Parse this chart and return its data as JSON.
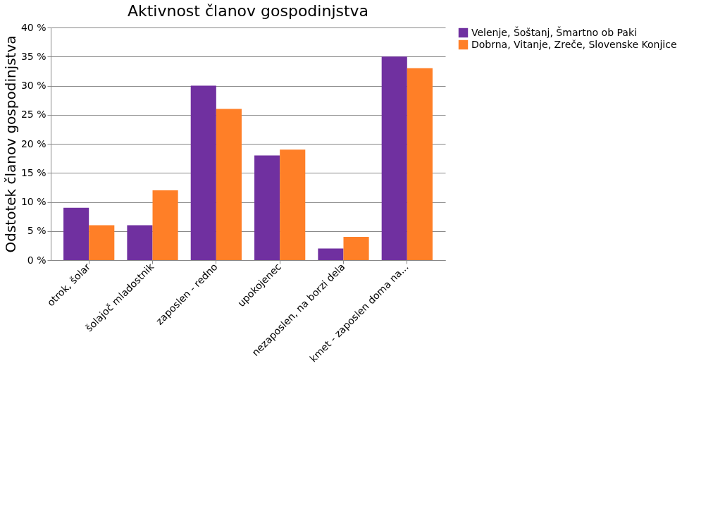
{
  "chart_data": {
    "type": "bar",
    "title": "Aktivnost članov gospodinjstva",
    "ylabel": "Odstotek članov gospodinjstva",
    "categories": [
      "otrok, šolar",
      "šolajoč mladostnik",
      "zaposlen - redno",
      "upokojenec",
      "nezaposlen, na borzi dela",
      "kmet - zaposlen doma na..."
    ],
    "series": [
      {
        "name": "Velenje, Šoštanj, Šmartno ob Paki",
        "color": "#7030a0",
        "values": [
          9,
          6,
          30,
          18,
          2,
          35
        ]
      },
      {
        "name": "Dobrna, Vitanje, Zreče, Slovenske Konjice",
        "color": "#ff7f27",
        "values": [
          6,
          12,
          26,
          19,
          4,
          33
        ]
      }
    ],
    "ylim": [
      0,
      40
    ],
    "yticks": [
      {
        "value": 0,
        "label": "0 %"
      },
      {
        "value": 5,
        "label": "5 %"
      },
      {
        "value": 10,
        "label": "10 %"
      },
      {
        "value": 15,
        "label": "15 %"
      },
      {
        "value": 20,
        "label": "20 %"
      },
      {
        "value": 25,
        "label": "25 %"
      },
      {
        "value": 30,
        "label": "30 %"
      },
      {
        "value": 35,
        "label": "35 %"
      },
      {
        "value": 40,
        "label": "40 %"
      }
    ],
    "grid": "y",
    "legend": "right"
  }
}
